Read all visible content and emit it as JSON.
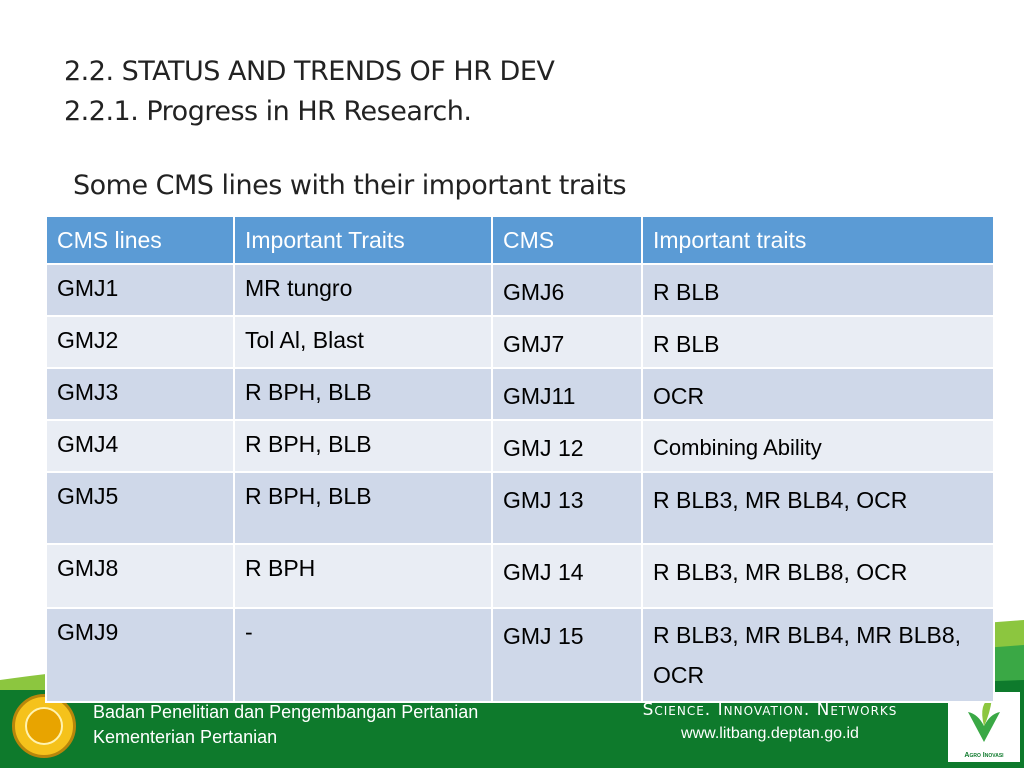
{
  "heading": {
    "line1": "2.2. STATUS AND TRENDS OF HR DEV",
    "line2": "2.2.1. Progress in HR Research."
  },
  "subtitle": "Some CMS lines with their important traits",
  "table": {
    "headers": [
      "CMS lines",
      "Important Traits",
      "CMS",
      "Important traits"
    ],
    "rows": [
      [
        "GMJ1",
        "MR tungro",
        "GMJ6",
        "R BLB"
      ],
      [
        "GMJ2",
        "Tol Al, Blast",
        "GMJ7",
        "R BLB"
      ],
      [
        "GMJ3",
        "R  BPH, BLB",
        "GMJ11",
        "OCR"
      ],
      [
        "GMJ4",
        "R BPH, BLB",
        "GMJ 12",
        "Combining Ability"
      ],
      [
        "GMJ5",
        "R BPH, BLB",
        "GMJ 13",
        "R BLB3, MR BLB4, OCR"
      ],
      [
        "GMJ8",
        "R BPH",
        "GMJ 14",
        "R BLB3, MR BLB8, OCR"
      ],
      [
        "GMJ9",
        "-",
        "GMJ 15",
        "R BLB3, MR BLB4, MR BLB8, OCR"
      ]
    ]
  },
  "footer": {
    "org_line1": "Badan Penelitian dan Pengembangan Pertanian",
    "org_line2": "Kementerian Pertanian",
    "tagline": "Science. Innovation. Networks",
    "url": "www.litbang.deptan.go.id",
    "right_logo_caption": "Agro Inovasi",
    "colors": {
      "footer_green": "#0e7a2c",
      "header_blue": "#5b9bd5",
      "row_dark": "#cfd8e9",
      "row_light": "#e9edf4"
    }
  }
}
